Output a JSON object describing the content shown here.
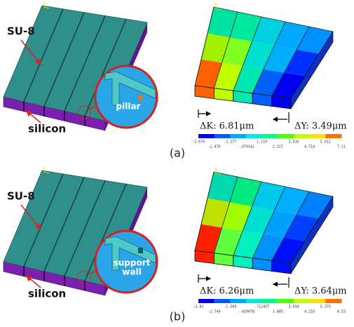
{
  "panels": [
    {
      "su8": "SU-8",
      "silicon": "silicon",
      "zoom_label": [
        "pillar"
      ],
      "delta_k": "ΔK: 6.81μm",
      "delta_y": "ΔY: 3.49μm",
      "colorbar_labels": [
        "-3.674",
        "-2.476",
        "-1.277",
        "-.079142",
        "1.119",
        "2.317",
        "3.516",
        "4.714",
        "5.912",
        "7.11"
      ],
      "caption": "(a)"
    },
    {
      "su8": "SU-8",
      "silicon": "silicon",
      "zoom_label": [
        "support",
        "wall"
      ],
      "delta_k": "ΔK: 6.26μm",
      "delta_y": "ΔY: 3.64μm",
      "colorbar_labels": [
        "-3.81",
        "-2.749",
        "-1.569",
        "-.420078",
        ".712457",
        "1.885",
        "3.034",
        "4.216",
        "5.375",
        "6.53"
      ],
      "caption": "(b)"
    }
  ]
}
